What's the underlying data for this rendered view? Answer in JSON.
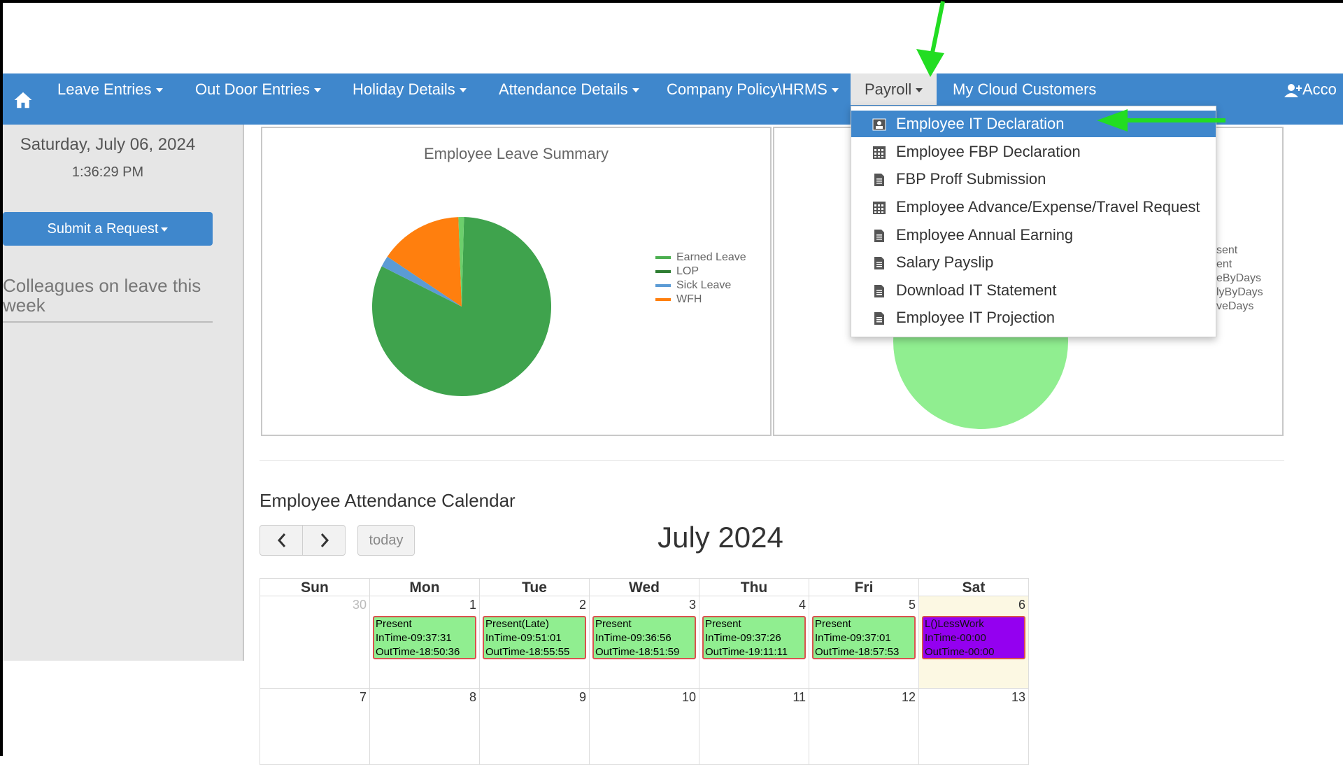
{
  "navbar": {
    "items": [
      {
        "label": "Leave Entries"
      },
      {
        "label": "Out Door Entries"
      },
      {
        "label": "Holiday Details"
      },
      {
        "label": "Attendance Details"
      },
      {
        "label": "Company Policy\\HRMS"
      },
      {
        "label": "Payroll"
      },
      {
        "label": "My Cloud Customers"
      },
      {
        "label": "Acco"
      }
    ],
    "color": "#3f87cc"
  },
  "sidebar": {
    "date": "Saturday, July 06, 2024",
    "time": "1:36:29 PM",
    "submit_label": "Submit a Request",
    "colleagues_heading": "Colleagues on leave this week"
  },
  "leave_chart": {
    "chart_data": {
      "type": "pie",
      "title": "Employee Leave Summary",
      "legend": [
        "Earned Leave",
        "LOP",
        "Sick Leave",
        "WFH"
      ],
      "legend_colors": [
        "#4caf50",
        "#2e7d32",
        "#5b9bd5",
        "#ff7f0e"
      ],
      "legend_placement": "right",
      "slices": [
        {
          "name": "LOP",
          "value": 82,
          "color": "#3fa34d"
        },
        {
          "name": "Sick Leave",
          "value": 2,
          "color": "#5b9bd5"
        },
        {
          "name": "WFH",
          "value": 15,
          "color": "#ff7f0e"
        },
        {
          "name": "Earned Leave",
          "value": 1,
          "color": "#6ccf6c"
        }
      ]
    }
  },
  "attendance_chart": {
    "legend_fragments": [
      "sent",
      "ent",
      "eByDays",
      "lyByDays",
      "veDays"
    ]
  },
  "payroll_menu": {
    "items": [
      {
        "label": "Employee IT Declaration",
        "icon": "user-id-icon"
      },
      {
        "label": "Employee FBP Declaration",
        "icon": "calendar-grid-icon"
      },
      {
        "label": "FBP Proff Submission",
        "icon": "document-icon"
      },
      {
        "label": "Employee Advance/Expense/Travel Request",
        "icon": "calendar-grid-icon"
      },
      {
        "label": "Employee Annual Earning",
        "icon": "document-icon"
      },
      {
        "label": "Salary Payslip",
        "icon": "document-icon"
      },
      {
        "label": "Download IT Statement",
        "icon": "document-icon"
      },
      {
        "label": "Employee IT Projection",
        "icon": "document-icon"
      }
    ]
  },
  "calendar": {
    "heading": "Employee Attendance Calendar",
    "today_label": "today",
    "month": "July 2024",
    "weekdays": [
      "Sun",
      "Mon",
      "Tue",
      "Wed",
      "Thu",
      "Fri",
      "Sat"
    ],
    "week1": [
      "30",
      "1",
      "2",
      "3",
      "4",
      "5",
      "6"
    ],
    "week2": [
      "7",
      "8",
      "9",
      "10",
      "11",
      "12",
      "13"
    ],
    "events": [
      {
        "status": "Present",
        "in": "InTime-09:37:31",
        "out": "OutTime-18:50:36"
      },
      {
        "status": "Present(Late)",
        "in": "InTime-09:51:01",
        "out": "OutTime-18:55:55"
      },
      {
        "status": "Present",
        "in": "InTime-09:36:56",
        "out": "OutTime-18:51:59"
      },
      {
        "status": "Present",
        "in": "InTime-09:37:26",
        "out": "OutTime-19:11:11"
      },
      {
        "status": "Present",
        "in": "InTime-09:37:01",
        "out": "OutTime-18:57:53"
      },
      {
        "status": "L()LessWork",
        "in": "InTime-00:00",
        "out": "OutTime-00:00"
      }
    ]
  },
  "annotation_color": "#22dd22"
}
